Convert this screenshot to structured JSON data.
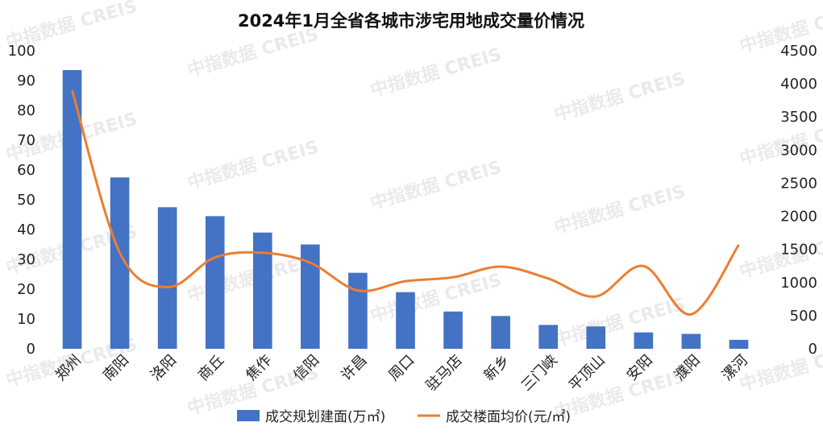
{
  "chart_data": {
    "type": "bar+line",
    "title": "2024年1月全省各城市涉宅用地成交量价情况",
    "categories": [
      "郑州",
      "南阳",
      "洛阳",
      "商丘",
      "焦作",
      "信阳",
      "许昌",
      "周口",
      "驻马店",
      "新乡",
      "三门峡",
      "平顶山",
      "安阳",
      "濮阳",
      "漯河"
    ],
    "series": [
      {
        "name": "成交规划建面(万㎡)",
        "type": "bar",
        "axis": "left",
        "color": "#4472c4",
        "values": [
          93.5,
          57.5,
          47.5,
          44.5,
          39,
          35,
          25.5,
          19,
          12.5,
          11,
          8,
          7.5,
          5.5,
          5,
          3
        ]
      },
      {
        "name": "成交楼面均价(元/㎡)",
        "type": "line",
        "axis": "right",
        "color": "#ed7d31",
        "values": [
          3900,
          1450,
          930,
          1380,
          1450,
          1300,
          880,
          1020,
          1080,
          1240,
          1060,
          790,
          1250,
          520,
          1570
        ]
      }
    ],
    "y_left": {
      "range": [
        0,
        100
      ],
      "ticks": [
        "0",
        "10",
        "20",
        "30",
        "40",
        "50",
        "60",
        "70",
        "80",
        "90",
        "100"
      ]
    },
    "y_right": {
      "range": [
        0,
        4500
      ],
      "ticks": [
        "0",
        "500",
        "1000",
        "1500",
        "2000",
        "2500",
        "3000",
        "3500",
        "4000",
        "4500"
      ]
    },
    "grid": false,
    "legend_position": "bottom"
  },
  "watermark": "中指数据 CREIS"
}
